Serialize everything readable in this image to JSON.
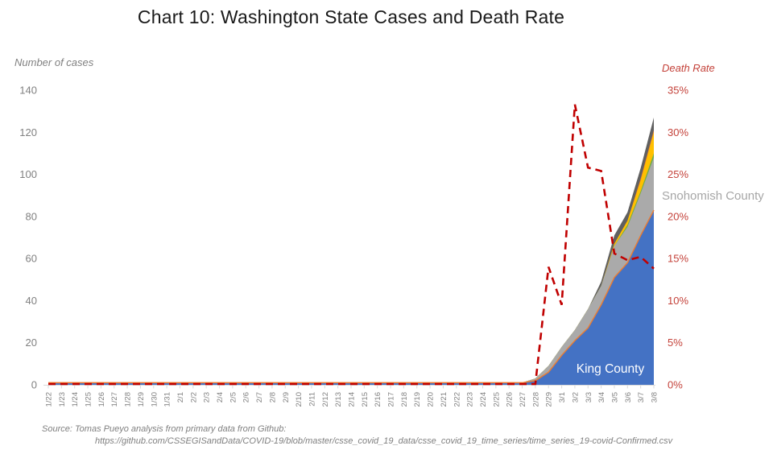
{
  "title": "Chart 10: Washington State Cases and Death Rate",
  "left_axis": {
    "label": "Number of cases",
    "min": 0,
    "max": 140,
    "step": 20
  },
  "right_axis": {
    "label": "Death Rate",
    "min": 0,
    "max": 35,
    "step": 5,
    "suffix": "%"
  },
  "annotations": {
    "king_county": "King County",
    "snohomish_county": "Snohomish County"
  },
  "source": {
    "line1": "Source: Tomas Pueyo analysis from primary data from Github:",
    "line2": "https://github.com/CSSEGISandData/COVID-19/blob/master/csse_covid_19_data/csse_covid_19_time_series/time_series_19-covid-Confirmed.csv"
  },
  "colors": {
    "title_text": "#1a1a1a",
    "gray_text": "#808080",
    "red_text": "#c4423a",
    "axis_line": "#d9d9d9",
    "death_rate_line": "#c00000",
    "king_fill": "#4472c4",
    "king_border": "#ed7d31",
    "snohomish_fill": "#aaaaaa",
    "green_fill": "#70ad47",
    "yellow_fill": "#ffc000",
    "orange_fill": "#ed7d31",
    "dark_gray_fill": "#606060"
  },
  "chart_data": {
    "type": "area",
    "title": "Chart 10: Washington State Cases and Death Rate",
    "xlabel": "",
    "ylabel_left": "Number of cases",
    "ylabel_right": "Death Rate",
    "ylim_left": [
      0,
      140
    ],
    "ylim_right_pct": [
      0,
      35
    ],
    "grid": false,
    "legend": "in-chart labels (King County on blue area, Snohomish County beside gray area)",
    "x": [
      "1/22",
      "1/23",
      "1/24",
      "1/25",
      "1/26",
      "1/27",
      "1/28",
      "1/29",
      "1/30",
      "1/31",
      "2/1",
      "2/2",
      "2/3",
      "2/4",
      "2/5",
      "2/6",
      "2/7",
      "2/8",
      "2/9",
      "2/10",
      "2/11",
      "2/12",
      "2/13",
      "2/14",
      "2/15",
      "2/16",
      "2/17",
      "2/18",
      "2/19",
      "2/20",
      "2/21",
      "2/22",
      "2/23",
      "2/24",
      "2/25",
      "2/26",
      "2/27",
      "2/28",
      "2/29",
      "3/1",
      "3/2",
      "3/3",
      "3/4",
      "3/5",
      "3/6",
      "3/7",
      "3/8"
    ],
    "series": [
      {
        "name": "King County",
        "color": "#4472c4",
        "border_color": "#ed7d31",
        "values": [
          1,
          1,
          1,
          1,
          1,
          1,
          1,
          1,
          1,
          1,
          1,
          1,
          1,
          1,
          1,
          1,
          1,
          1,
          1,
          1,
          1,
          1,
          1,
          1,
          1,
          1,
          1,
          1,
          1,
          1,
          1,
          1,
          1,
          1,
          1,
          1,
          1,
          2,
          6,
          14,
          21,
          27,
          38,
          51,
          58,
          71,
          83
        ]
      },
      {
        "name": "Snohomish County",
        "color": "#aaaaaa",
        "values": [
          0,
          0,
          0,
          0,
          0,
          0,
          0,
          0,
          0,
          0,
          0,
          0,
          0,
          0,
          0,
          0,
          0,
          0,
          0,
          0,
          0,
          0,
          0,
          0,
          0,
          0,
          0,
          0,
          0,
          0,
          0,
          0,
          0,
          0,
          0,
          0,
          0,
          1,
          3,
          4,
          5,
          9,
          9,
          15,
          17,
          20,
          25
        ]
      },
      {
        "name": "other-county-green",
        "color": "#70ad47",
        "values": [
          0,
          0,
          0,
          0,
          0,
          0,
          0,
          0,
          0,
          0,
          0,
          0,
          0,
          0,
          0,
          0,
          0,
          0,
          0,
          0,
          0,
          0,
          0,
          0,
          0,
          0,
          0,
          0,
          0,
          0,
          0,
          0,
          0,
          0,
          0,
          0,
          0,
          0,
          0,
          0,
          0,
          0,
          0,
          0,
          1,
          1,
          2
        ]
      },
      {
        "name": "other-county-yellow",
        "color": "#ffc000",
        "values": [
          0,
          0,
          0,
          0,
          0,
          0,
          0,
          0,
          0,
          0,
          0,
          0,
          0,
          0,
          0,
          0,
          0,
          0,
          0,
          0,
          0,
          0,
          0,
          0,
          0,
          0,
          0,
          0,
          0,
          0,
          0,
          0,
          0,
          0,
          0,
          0,
          0,
          0,
          0,
          0,
          0,
          0,
          0,
          1,
          2,
          5,
          10
        ]
      },
      {
        "name": "other-county-orange",
        "color": "#ed7d31",
        "values": [
          0,
          0,
          0,
          0,
          0,
          0,
          0,
          0,
          0,
          0,
          0,
          0,
          0,
          0,
          0,
          0,
          0,
          0,
          0,
          0,
          0,
          0,
          0,
          0,
          0,
          0,
          0,
          0,
          0,
          0,
          0,
          0,
          0,
          0,
          0,
          0,
          0,
          0,
          0,
          0,
          0,
          0,
          0,
          0,
          0,
          1,
          1
        ]
      },
      {
        "name": "other-counties-dark-gray",
        "color": "#606060",
        "values": [
          0,
          0,
          0,
          0,
          0,
          0,
          0,
          0,
          0,
          0,
          0,
          0,
          0,
          0,
          0,
          0,
          0,
          0,
          0,
          0,
          0,
          0,
          0,
          0,
          0,
          0,
          0,
          0,
          0,
          0,
          0,
          0,
          0,
          0,
          0,
          0,
          0,
          0,
          0,
          0,
          0,
          0,
          2,
          4,
          4,
          5,
          6
        ]
      }
    ],
    "line_series": {
      "name": "Death Rate",
      "axis": "right",
      "style": "dashed",
      "color": "#c00000",
      "values_pct": [
        0,
        0,
        0,
        0,
        0,
        0,
        0,
        0,
        0,
        0,
        0,
        0,
        0,
        0,
        0,
        0,
        0,
        0,
        0,
        0,
        0,
        0,
        0,
        0,
        0,
        0,
        0,
        0,
        0,
        0,
        0,
        0,
        0,
        0,
        0,
        0,
        0,
        0,
        14,
        9.5,
        33.3,
        25.8,
        25.4,
        15.6,
        14.8,
        15.2,
        13.8
      ]
    }
  }
}
